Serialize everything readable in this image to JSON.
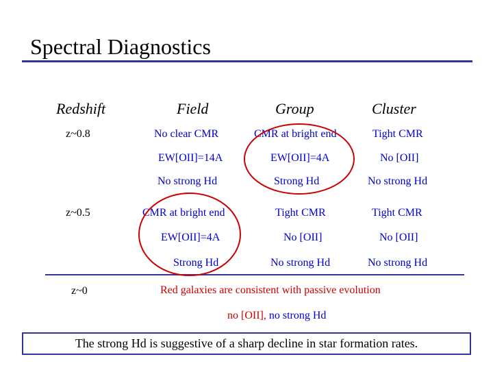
{
  "title": "Spectral Diagnostics",
  "headers": {
    "redshift": "Redshift",
    "field": "Field",
    "group": "Group",
    "cluster": "Cluster"
  },
  "redshifts": [
    "z~0.8",
    "z~0.5",
    "z~0"
  ],
  "rows": [
    {
      "field": "No clear CMR",
      "group": "CMR at bright end",
      "cluster": "Tight CMR"
    },
    {
      "field": "EW[OII]=14A",
      "group": "EW[OII]=4A",
      "cluster": "No [OII]"
    },
    {
      "field": "No strong Hd",
      "group": "Strong Hd",
      "cluster": "No strong Hd"
    },
    {
      "field": "CMR at bright end",
      "group": "Tight CMR",
      "cluster": "Tight CMR"
    },
    {
      "field": "EW[OII]=4A",
      "group": "No [OII]",
      "cluster": "No [OII]"
    },
    {
      "field": "Strong Hd",
      "group": "No strong Hd",
      "cluster": "No strong Hd"
    }
  ],
  "z0": {
    "line1": "Red galaxies are consistent with passive evolution",
    "line2_red": "no [OII],",
    "line2_blue": " no strong Hd"
  },
  "footer": "The strong Hd is suggestive of a sharp decline in star formation rates.",
  "colors": {
    "accent": "#333399",
    "text_blue": "#0000cc",
    "highlight_red": "#cc0000"
  }
}
